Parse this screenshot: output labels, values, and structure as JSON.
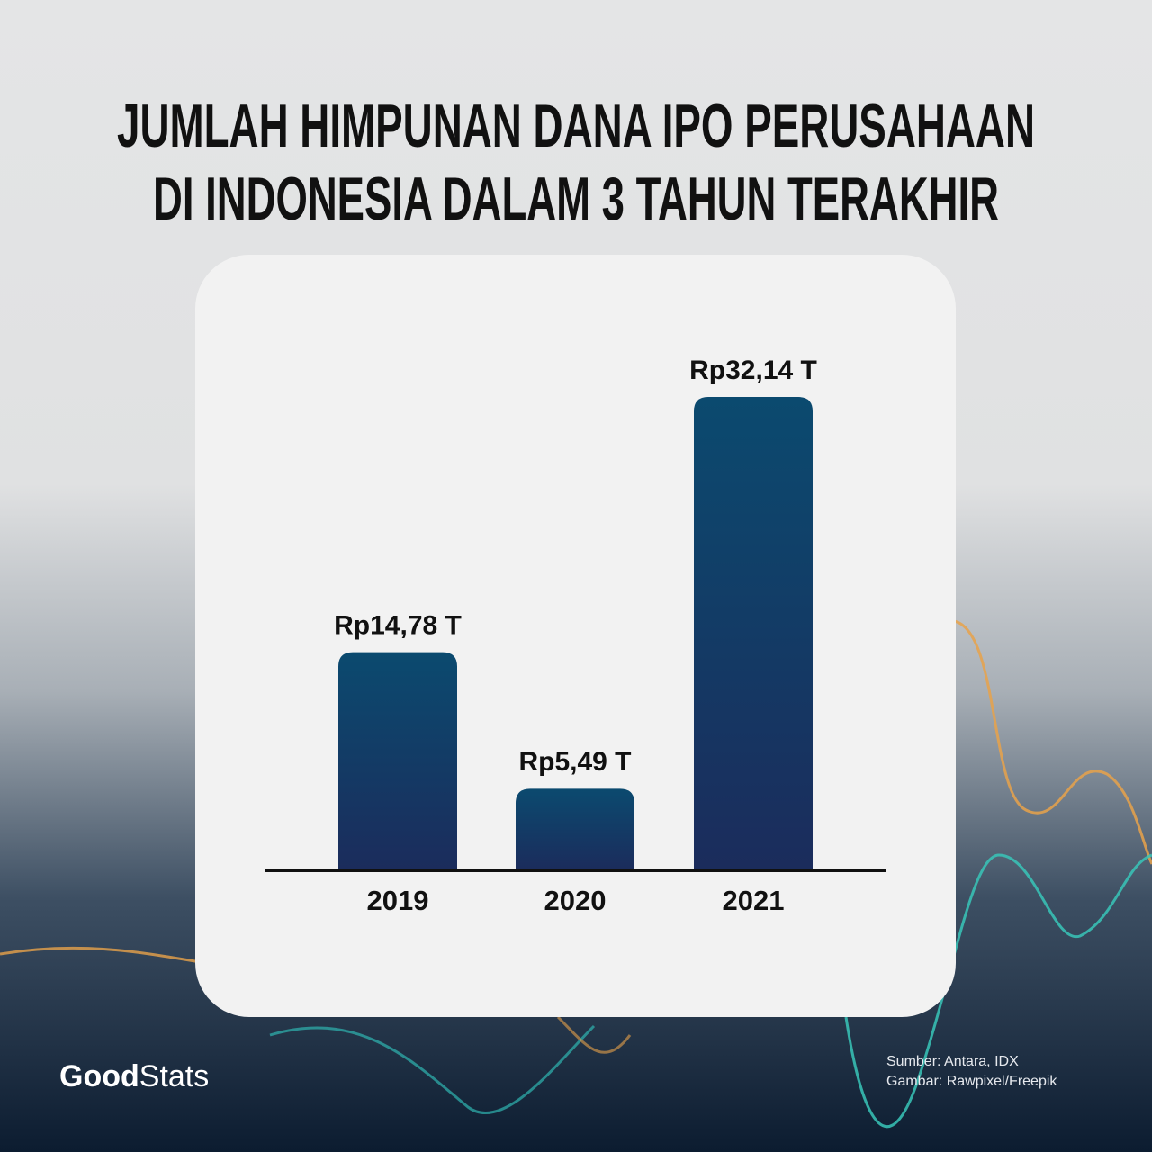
{
  "chart_data": {
    "type": "bar",
    "title": [
      "JUMLAH HIMPUNAN DANA IPO PERUSAHAAN",
      "DI INDONESIA DALAM 3 TAHUN TERAKHIR"
    ],
    "categories": [
      "2019",
      "2020",
      "2021"
    ],
    "values": [
      14.78,
      5.49,
      32.14
    ],
    "value_labels": [
      "Rp14,78 T",
      "Rp5,49 T",
      "Rp32,14 T"
    ],
    "color": [
      "#0b4a6f",
      "#1b2c5c"
    ]
  },
  "footer": {
    "sources": [
      "Sumber: Antara, IDX",
      "Gambar: Rawpixel/Freepik"
    ],
    "logo": {
      "bold": "Good",
      "regular": "Stats"
    }
  }
}
